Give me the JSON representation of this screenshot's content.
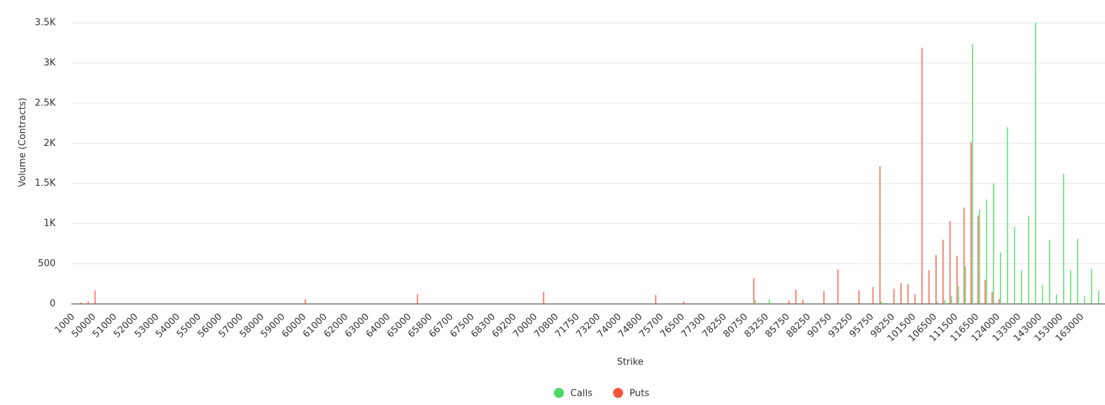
{
  "chart_data": {
    "type": "bar",
    "y_label": "Volume (Contracts)",
    "x_label": "Strike",
    "categories": [
      "1000",
      null,
      null,
      "50000",
      null,
      null,
      "51000",
      null,
      null,
      "52000",
      null,
      null,
      "53000",
      null,
      null,
      "54000",
      null,
      null,
      "55000",
      null,
      null,
      "56000",
      null,
      null,
      "57000",
      null,
      null,
      "58000",
      null,
      null,
      "59000",
      null,
      null,
      "60000",
      null,
      null,
      "61000",
      null,
      null,
      "62000",
      null,
      null,
      "63000",
      null,
      null,
      "64000",
      null,
      null,
      "65000",
      null,
      null,
      "65800",
      null,
      null,
      "66700",
      null,
      null,
      "67500",
      null,
      null,
      "68300",
      null,
      null,
      "69200",
      null,
      null,
      "70000",
      null,
      null,
      "70800",
      null,
      null,
      "71750",
      null,
      null,
      "73200",
      null,
      null,
      "74000",
      null,
      null,
      "74800",
      null,
      null,
      "75700",
      null,
      null,
      "76500",
      null,
      null,
      "77300",
      null,
      null,
      "78250",
      null,
      null,
      "80750",
      null,
      null,
      "83250",
      null,
      null,
      "85750",
      null,
      null,
      "88250",
      null,
      null,
      "90750",
      null,
      null,
      "93250",
      null,
      null,
      "95750",
      null,
      null,
      "98250",
      null,
      null,
      "101500",
      null,
      null,
      "106500",
      null,
      null,
      "111500",
      null,
      null,
      "116500",
      null,
      null,
      "124000",
      null,
      null,
      "133000",
      null,
      null,
      "143000",
      null,
      null,
      "153000",
      null,
      null,
      "163000",
      null,
      null
    ],
    "series": [
      {
        "name": "Calls",
        "color": "#4cd964",
        "values": [
          0,
          0,
          0,
          0,
          0,
          0,
          0,
          0,
          0,
          0,
          0,
          0,
          0,
          0,
          0,
          0,
          0,
          0,
          0,
          0,
          0,
          0,
          0,
          0,
          0,
          0,
          0,
          0,
          0,
          0,
          0,
          0,
          0,
          0,
          0,
          0,
          0,
          0,
          0,
          0,
          0,
          0,
          0,
          0,
          0,
          0,
          0,
          0,
          0,
          0,
          0,
          0,
          0,
          0,
          0,
          0,
          0,
          0,
          0,
          0,
          0,
          0,
          0,
          0,
          0,
          0,
          0,
          0,
          0,
          0,
          0,
          0,
          0,
          0,
          0,
          0,
          0,
          0,
          0,
          0,
          0,
          0,
          0,
          0,
          0,
          0,
          0,
          0,
          0,
          0,
          0,
          0,
          0,
          0,
          0,
          0,
          0,
          50,
          0,
          60,
          0,
          0,
          0,
          0,
          0,
          0,
          0,
          0,
          0,
          0,
          0,
          0,
          0,
          0,
          0,
          30,
          0,
          0,
          0,
          0,
          0,
          0,
          0,
          30,
          50,
          100,
          220,
          470,
          3230,
          1170,
          1300,
          1500,
          640,
          2200,
          960,
          420,
          1100,
          3500,
          240,
          800,
          120,
          1620,
          420,
          810,
          100,
          440,
          170
        ]
      },
      {
        "name": "Puts",
        "color": "#f4553d",
        "values": [
          0,
          20,
          30,
          170,
          0,
          0,
          0,
          0,
          0,
          0,
          0,
          0,
          0,
          0,
          0,
          0,
          0,
          0,
          0,
          0,
          0,
          0,
          0,
          0,
          0,
          0,
          0,
          0,
          0,
          0,
          0,
          0,
          0,
          60,
          0,
          0,
          0,
          0,
          0,
          0,
          0,
          0,
          0,
          0,
          0,
          0,
          0,
          0,
          0,
          120,
          0,
          0,
          0,
          0,
          0,
          0,
          0,
          0,
          0,
          0,
          0,
          0,
          0,
          0,
          0,
          0,
          0,
          150,
          0,
          0,
          0,
          0,
          0,
          0,
          0,
          0,
          0,
          0,
          0,
          0,
          0,
          0,
          0,
          110,
          0,
          0,
          0,
          30,
          0,
          0,
          0,
          0,
          0,
          0,
          0,
          0,
          0,
          320,
          0,
          0,
          0,
          0,
          40,
          180,
          50,
          0,
          0,
          160,
          0,
          430,
          0,
          0,
          170,
          0,
          210,
          1710,
          0,
          190,
          260,
          250,
          120,
          3190,
          420,
          610,
          800,
          1030,
          600,
          1200,
          2010,
          1100,
          300,
          150,
          60,
          0,
          0,
          0,
          0,
          0,
          0,
          0,
          0,
          0,
          0,
          0,
          0,
          0,
          0
        ]
      }
    ],
    "ylim": [
      0,
      3500
    ],
    "yticks": [
      0,
      500,
      {
        "value": 1000,
        "label": "1K"
      },
      {
        "value": 1500,
        "label": "1.5K"
      },
      {
        "value": 2000,
        "label": "2K"
      },
      {
        "value": 2500,
        "label": "2.5K"
      },
      {
        "value": 3000,
        "label": "3K"
      },
      {
        "value": 3500,
        "label": "3.5K"
      }
    ],
    "grid": true,
    "legend": "bottom"
  }
}
